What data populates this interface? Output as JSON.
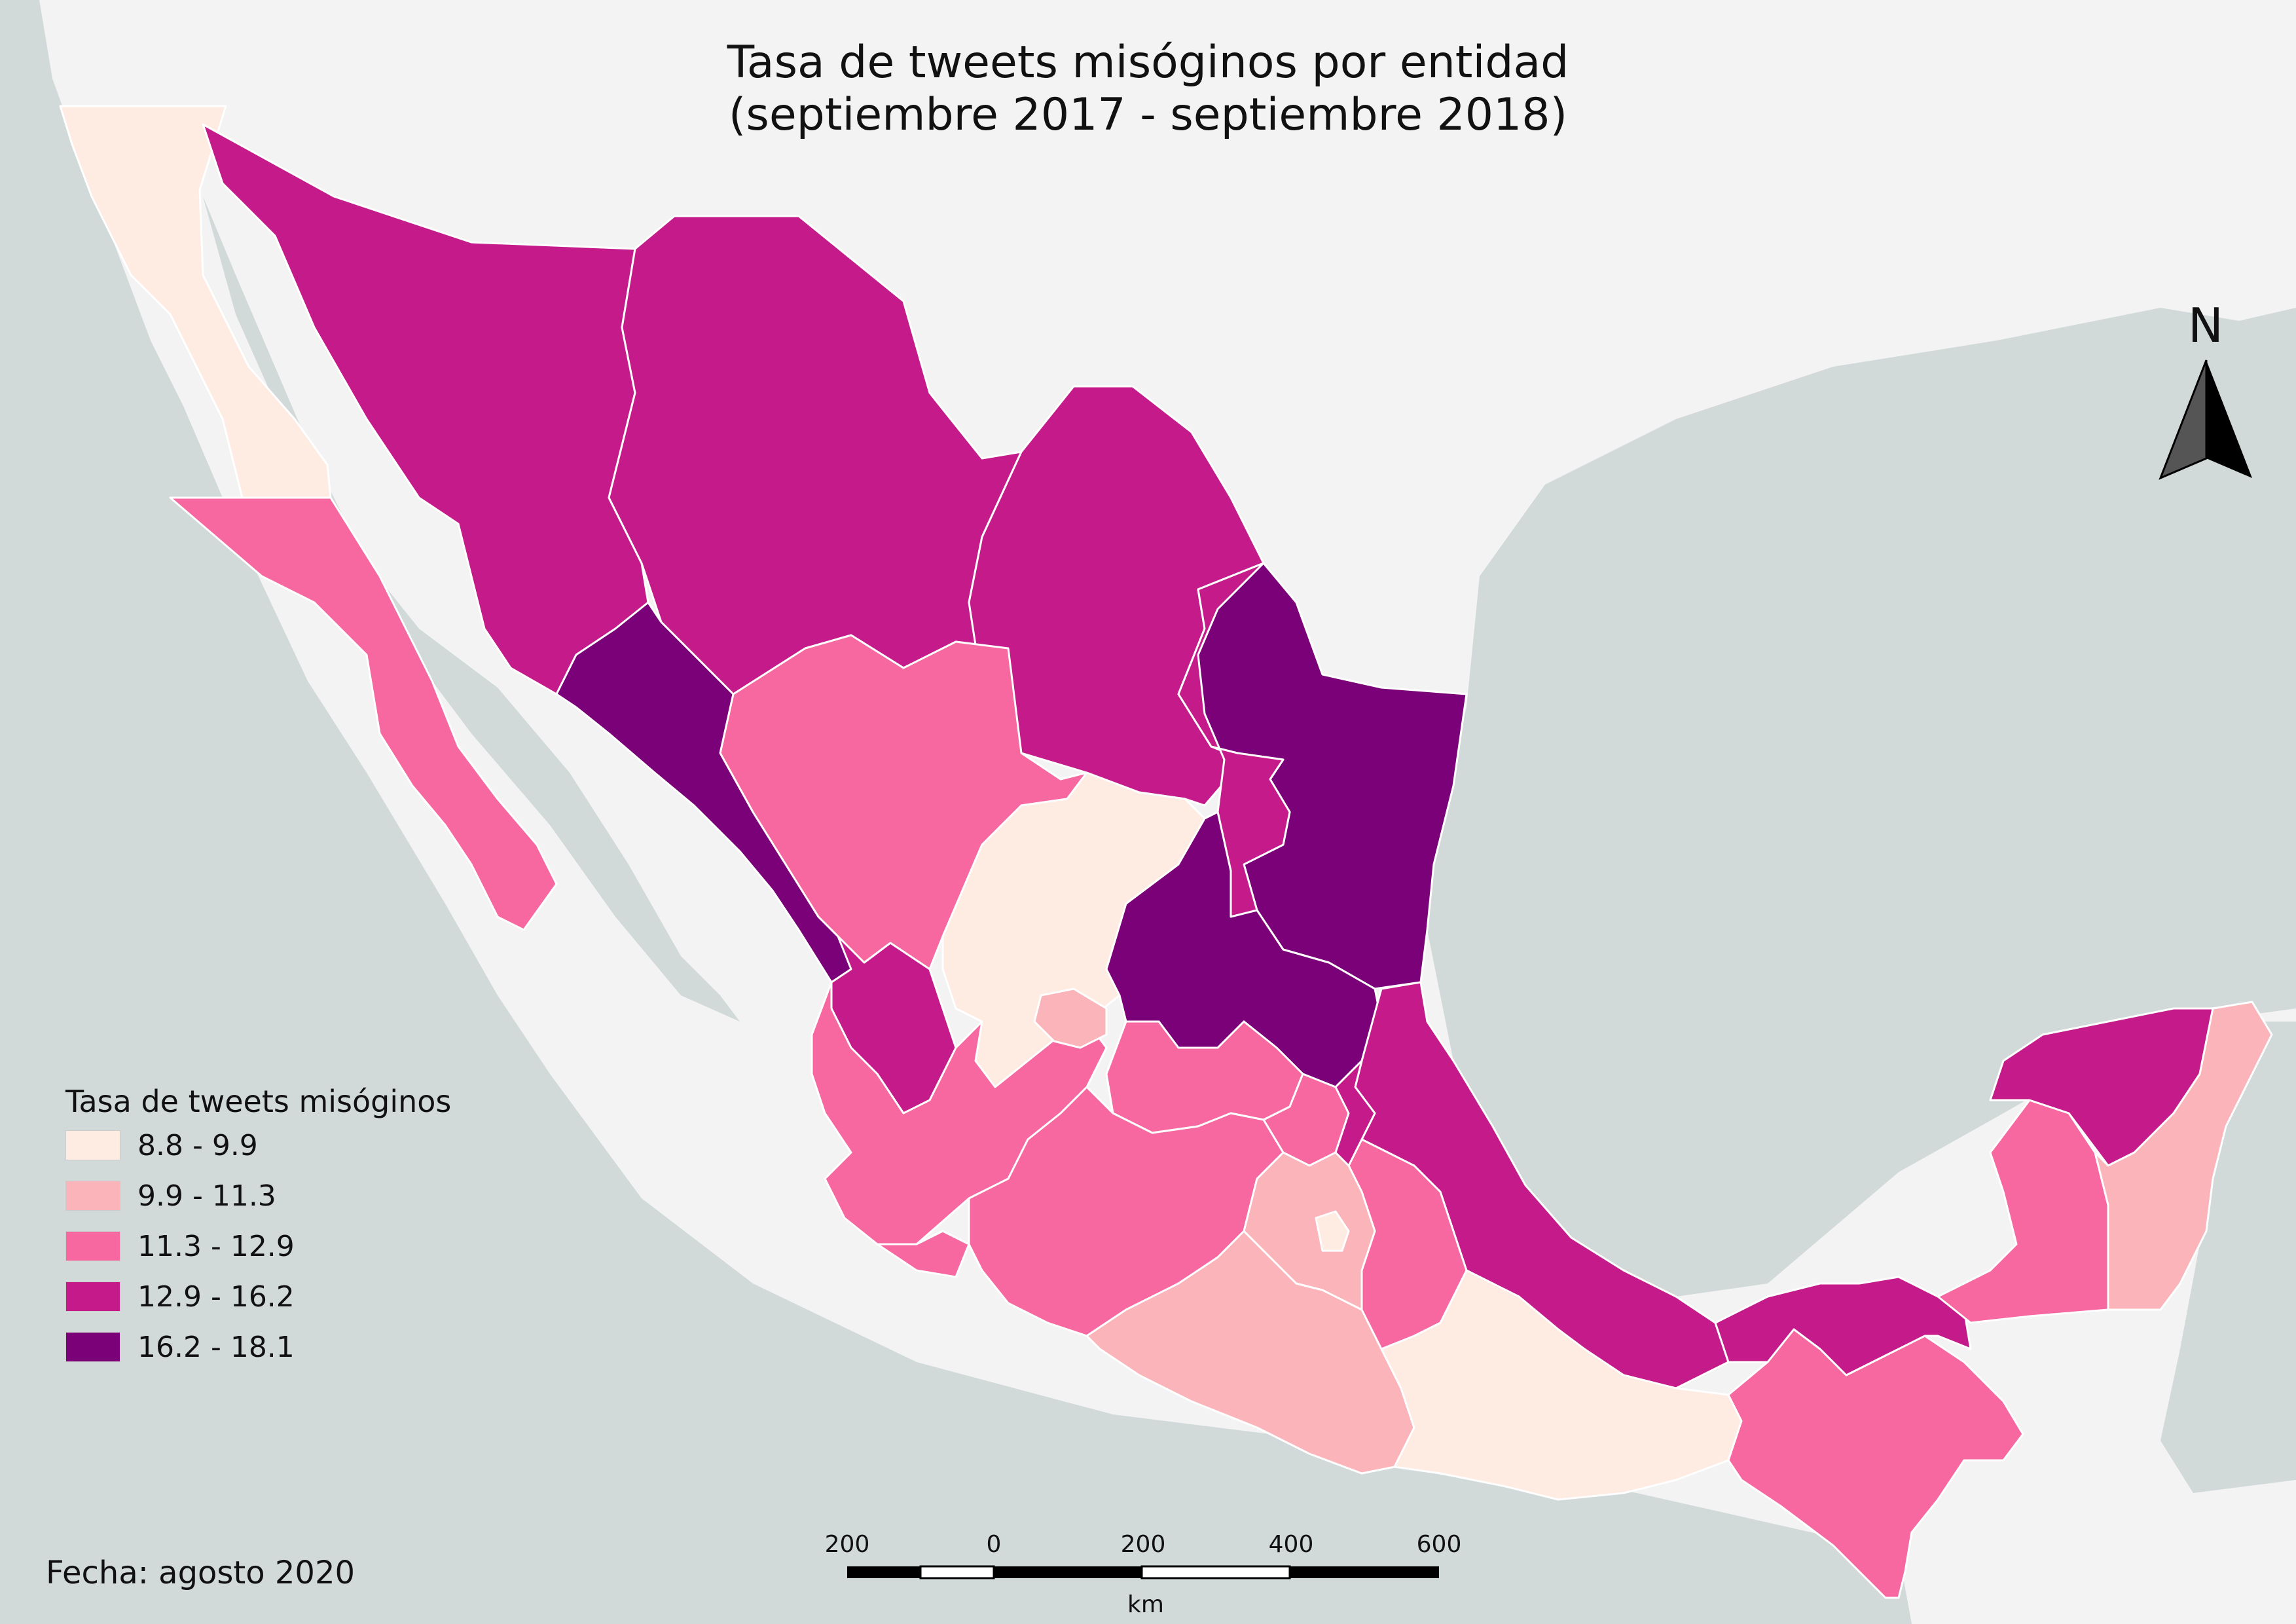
{
  "title": {
    "line1": "Tasa de tweets misóginos por entidad",
    "line2": "(septiembre 2017 - septiembre 2018)"
  },
  "legend": {
    "title": "Tasa de tweets misóginos",
    "classes": [
      {
        "label": "8.8 - 9.9",
        "color": "#feebe2"
      },
      {
        "label": "9.9 - 11.3",
        "color": "#fbb4b9"
      },
      {
        "label": "11.3 - 12.9",
        "color": "#f768a1"
      },
      {
        "label": "12.9 - 16.2",
        "color": "#c51b8a"
      },
      {
        "label": "16.2 - 18.1",
        "color": "#7a0177"
      }
    ]
  },
  "scale_bar": {
    "ticks": [
      "200",
      "0",
      "200",
      "400",
      "600"
    ],
    "unit": "km"
  },
  "north_arrow": {
    "label": "N",
    "icon": "north-arrow-icon"
  },
  "footer": {
    "date": "Fecha: agosto 2020"
  },
  "colors": {
    "sea": "#d1d9d9",
    "land_outside": "#f3f3f3",
    "state_border": "#ffffff"
  },
  "states": [
    {
      "class": 0
    },
    {
      "class": 2
    },
    {
      "class": 3
    },
    {
      "class": 3
    },
    {
      "class": 3
    },
    {
      "class": 4
    },
    {
      "class": 2
    },
    {
      "class": 0
    },
    {
      "class": 4
    },
    {
      "class": 3
    },
    {
      "class": 3
    },
    {
      "class": 4
    },
    {
      "class": 2
    },
    {
      "class": 1
    },
    {
      "class": 2
    },
    {
      "class": 3
    },
    {
      "class": 2
    },
    {
      "class": 2
    },
    {
      "class": 2
    },
    {
      "class": 1
    },
    {
      "class": 0
    },
    {
      "class": 2
    },
    {
      "class": 3
    },
    {
      "class": 2
    },
    {
      "class": 3
    },
    {
      "class": 1
    },
    {
      "class": 2
    },
    {
      "class": 1
    },
    {
      "class": 0
    },
    {
      "class": 3
    }
  ]
}
